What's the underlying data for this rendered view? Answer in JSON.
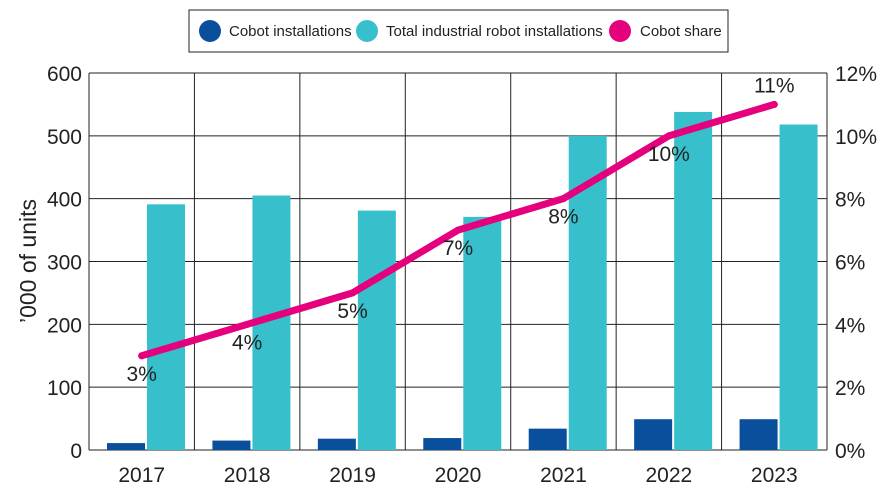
{
  "chart_data": {
    "type": "bar",
    "title": "",
    "xlabel": "",
    "ylabel": "’000 of units",
    "y2label": "",
    "categories": [
      "2017",
      "2018",
      "2019",
      "2020",
      "2021",
      "2022",
      "2023"
    ],
    "series": [
      {
        "name": "Cobot installations",
        "type": "bar",
        "axis": "left",
        "color": "#0a4f9c",
        "values": [
          11,
          15,
          18,
          19,
          34,
          49,
          49
        ]
      },
      {
        "name": "Total industrial robot installations",
        "type": "bar",
        "axis": "left",
        "color": "#37c0cb",
        "values": [
          391,
          405,
          381,
          371,
          500,
          538,
          518
        ]
      },
      {
        "name": "Cobot share",
        "type": "line",
        "axis": "right",
        "color": "#e5007e",
        "values": [
          3,
          4,
          5,
          7,
          8,
          10,
          11
        ],
        "labels": [
          "3%",
          "4%",
          "5%",
          "7%",
          "8%",
          "10%",
          "11%"
        ]
      }
    ],
    "ylim": [
      0,
      600
    ],
    "yticks": [
      "0",
      "100",
      "200",
      "300",
      "400",
      "500",
      "600"
    ],
    "y2lim": [
      0,
      12
    ],
    "y2ticks": [
      "0%",
      "2%",
      "4%",
      "6%",
      "8%",
      "10%",
      "12%"
    ],
    "grid": true,
    "legend": "top-center"
  }
}
